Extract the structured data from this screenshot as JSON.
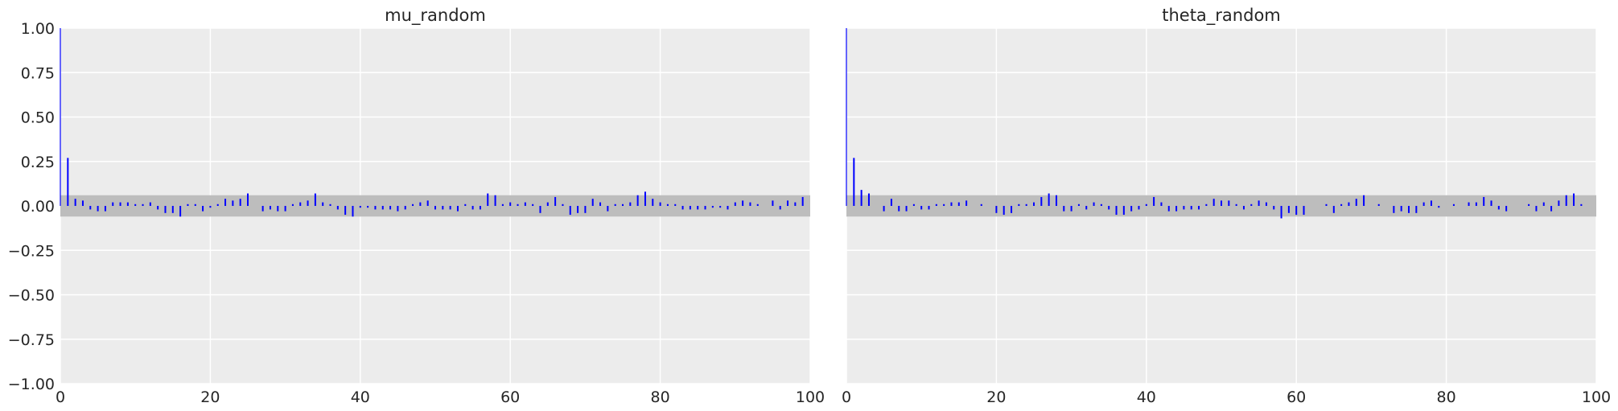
{
  "chart_data": [
    {
      "type": "bar",
      "subtype": "autocorrelation",
      "title": "mu_random",
      "xlabel": "",
      "ylabel": "",
      "xlim": [
        0,
        100
      ],
      "ylim": [
        -1.0,
        1.0
      ],
      "xticks": [
        "0",
        "20",
        "40",
        "60",
        "80",
        "100"
      ],
      "yticks": [
        "1.00",
        "0.75",
        "0.50",
        "0.25",
        "0.00",
        "−0.25",
        "−0.50",
        "−0.75",
        "−1.00"
      ],
      "grid": true,
      "confidence_band": [
        -0.06,
        0.06
      ],
      "lags": [
        0,
        1,
        2,
        3,
        4,
        5,
        6,
        7,
        8,
        9,
        10,
        11,
        12,
        13,
        14,
        15,
        16,
        17,
        18,
        19,
        20,
        21,
        22,
        23,
        24,
        25,
        26,
        27,
        28,
        29,
        30,
        31,
        32,
        33,
        34,
        35,
        36,
        37,
        38,
        39,
        40,
        41,
        42,
        43,
        44,
        45,
        46,
        47,
        48,
        49,
        50,
        51,
        52,
        53,
        54,
        55,
        56,
        57,
        58,
        59,
        60,
        61,
        62,
        63,
        64,
        65,
        66,
        67,
        68,
        69,
        70,
        71,
        72,
        73,
        74,
        75,
        76,
        77,
        78,
        79,
        80,
        81,
        82,
        83,
        84,
        85,
        86,
        87,
        88,
        89,
        90,
        91,
        92,
        93,
        94,
        95,
        96,
        97,
        98,
        99
      ],
      "values": [
        1.0,
        0.27,
        0.04,
        0.03,
        -0.02,
        -0.03,
        -0.03,
        0.02,
        0.02,
        0.02,
        0.01,
        0.01,
        0.02,
        -0.02,
        -0.04,
        -0.04,
        -0.06,
        0.01,
        0.01,
        -0.03,
        -0.01,
        0.01,
        0.04,
        0.03,
        0.04,
        0.07,
        0.0,
        -0.03,
        -0.02,
        -0.03,
        -0.03,
        0.01,
        0.02,
        0.03,
        0.07,
        0.02,
        0.01,
        -0.02,
        -0.05,
        -0.06,
        -0.01,
        -0.01,
        -0.02,
        -0.02,
        -0.02,
        -0.03,
        -0.02,
        0.01,
        0.02,
        0.03,
        -0.02,
        -0.02,
        -0.02,
        -0.03,
        0.01,
        -0.02,
        -0.02,
        0.07,
        0.06,
        0.01,
        0.02,
        0.01,
        0.02,
        0.01,
        -0.04,
        0.02,
        0.05,
        0.01,
        -0.05,
        -0.04,
        -0.04,
        0.04,
        0.02,
        -0.03,
        0.01,
        0.01,
        0.02,
        0.06,
        0.08,
        0.04,
        0.02,
        0.01,
        0.01,
        -0.02,
        -0.02,
        -0.02,
        -0.02,
        -0.01,
        -0.01,
        -0.02,
        0.02,
        0.03,
        0.02,
        0.01,
        0.0,
        0.03,
        -0.02,
        0.03,
        0.02,
        0.05
      ]
    },
    {
      "type": "bar",
      "subtype": "autocorrelation",
      "title": "theta_random",
      "xlabel": "",
      "ylabel": "",
      "xlim": [
        0,
        100
      ],
      "ylim": [
        -1.0,
        1.0
      ],
      "xticks": [
        "0",
        "20",
        "40",
        "60",
        "80",
        "100"
      ],
      "yticks": [],
      "grid": true,
      "confidence_band": [
        -0.06,
        0.06
      ],
      "lags": [
        0,
        1,
        2,
        3,
        4,
        5,
        6,
        7,
        8,
        9,
        10,
        11,
        12,
        13,
        14,
        15,
        16,
        17,
        18,
        19,
        20,
        21,
        22,
        23,
        24,
        25,
        26,
        27,
        28,
        29,
        30,
        31,
        32,
        33,
        34,
        35,
        36,
        37,
        38,
        39,
        40,
        41,
        42,
        43,
        44,
        45,
        46,
        47,
        48,
        49,
        50,
        51,
        52,
        53,
        54,
        55,
        56,
        57,
        58,
        59,
        60,
        61,
        62,
        63,
        64,
        65,
        66,
        67,
        68,
        69,
        70,
        71,
        72,
        73,
        74,
        75,
        76,
        77,
        78,
        79,
        80,
        81,
        82,
        83,
        84,
        85,
        86,
        87,
        88,
        89,
        90,
        91,
        92,
        93,
        94,
        95,
        96,
        97,
        98,
        99
      ],
      "values": [
        1.0,
        0.27,
        0.09,
        0.07,
        0.0,
        -0.03,
        0.04,
        -0.03,
        -0.03,
        0.01,
        -0.02,
        -0.02,
        0.01,
        0.01,
        0.02,
        0.02,
        0.03,
        0.0,
        0.01,
        0.0,
        -0.04,
        -0.05,
        -0.04,
        0.01,
        0.01,
        0.02,
        0.05,
        0.07,
        0.06,
        -0.03,
        -0.03,
        0.01,
        -0.02,
        0.02,
        0.01,
        -0.02,
        -0.05,
        -0.05,
        -0.03,
        -0.02,
        0.01,
        0.05,
        0.02,
        -0.03,
        -0.03,
        -0.02,
        -0.02,
        -0.02,
        0.01,
        0.04,
        0.03,
        0.03,
        0.01,
        -0.02,
        0.01,
        0.03,
        0.02,
        -0.02,
        -0.07,
        -0.04,
        -0.05,
        -0.05,
        0.0,
        0.0,
        0.01,
        -0.04,
        0.01,
        0.02,
        0.04,
        0.06,
        0.0,
        0.01,
        0.0,
        -0.04,
        -0.03,
        -0.04,
        -0.04,
        0.02,
        0.03,
        -0.01,
        0.0,
        0.01,
        0.0,
        0.02,
        0.02,
        0.05,
        0.03,
        -0.02,
        -0.03,
        0.0,
        0.0,
        0.01,
        -0.03,
        0.02,
        -0.03,
        0.03,
        0.06,
        0.07,
        0.01,
        0.0
      ]
    }
  ]
}
